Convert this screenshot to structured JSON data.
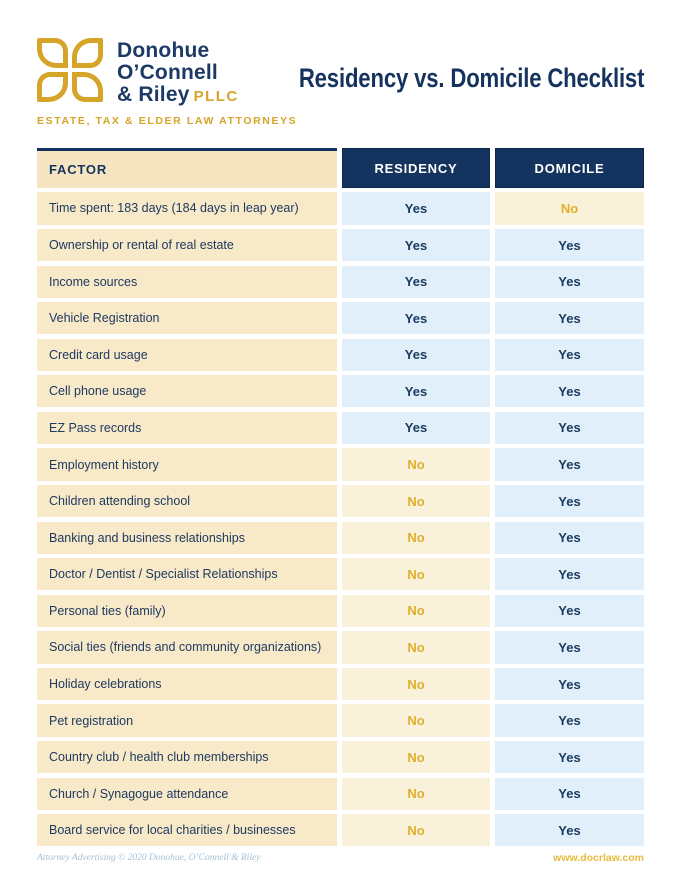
{
  "brand": {
    "name_line1": "Donohue",
    "name_line2": "O’Connell",
    "name_line3": "& Riley",
    "suffix": "PLLC",
    "tagline": "ESTATE, TAX & ELDER LAW ATTORNEYS"
  },
  "title": "Residency vs. Domicile Checklist",
  "table": {
    "headers": {
      "factor": "FACTOR",
      "residency": "RESIDENCY",
      "domicile": "DOMICILE"
    },
    "rows": [
      {
        "factor": "Time spent: 183 days (184 days in leap year)",
        "residency": "Yes",
        "domicile": "No"
      },
      {
        "factor": "Ownership or rental of real estate",
        "residency": "Yes",
        "domicile": "Yes"
      },
      {
        "factor": "Income sources",
        "residency": "Yes",
        "domicile": "Yes"
      },
      {
        "factor": "Vehicle Registration",
        "residency": "Yes",
        "domicile": "Yes"
      },
      {
        "factor": "Credit card usage",
        "residency": "Yes",
        "domicile": "Yes"
      },
      {
        "factor": "Cell phone usage",
        "residency": "Yes",
        "domicile": "Yes"
      },
      {
        "factor": "EZ Pass records",
        "residency": "Yes",
        "domicile": "Yes"
      },
      {
        "factor": "Employment history",
        "residency": "No",
        "domicile": "Yes"
      },
      {
        "factor": "Children attending school",
        "residency": "No",
        "domicile": "Yes"
      },
      {
        "factor": "Banking and business relationships",
        "residency": "No",
        "domicile": "Yes"
      },
      {
        "factor": "Doctor / Dentist / Specialist Relationships",
        "residency": "No",
        "domicile": "Yes"
      },
      {
        "factor": "Personal ties (family)",
        "residency": "No",
        "domicile": "Yes"
      },
      {
        "factor": "Social ties (friends and community organizations)",
        "residency": "No",
        "domicile": "Yes"
      },
      {
        "factor": "Holiday celebrations",
        "residency": "No",
        "domicile": "Yes"
      },
      {
        "factor": "Pet registration",
        "residency": "No",
        "domicile": "Yes"
      },
      {
        "factor": "Country club / health club memberships",
        "residency": "No",
        "domicile": "Yes"
      },
      {
        "factor": "Church / Synagogue attendance",
        "residency": "No",
        "domicile": "Yes"
      },
      {
        "factor": "Board service for local charities / businesses",
        "residency": "No",
        "domicile": "Yes"
      }
    ]
  },
  "footer": {
    "left": "Attorney Advertising © 2020 Donohue, O’Connell & Riley",
    "right": "www.docrlaw.com"
  },
  "colors": {
    "navy": "#14335e",
    "gold": "#d5a428",
    "factor_cream": "#f8e9c8",
    "no_cream": "#faf1da",
    "yes_blue": "#e0effa",
    "gold_text": "#dfaf2b"
  }
}
